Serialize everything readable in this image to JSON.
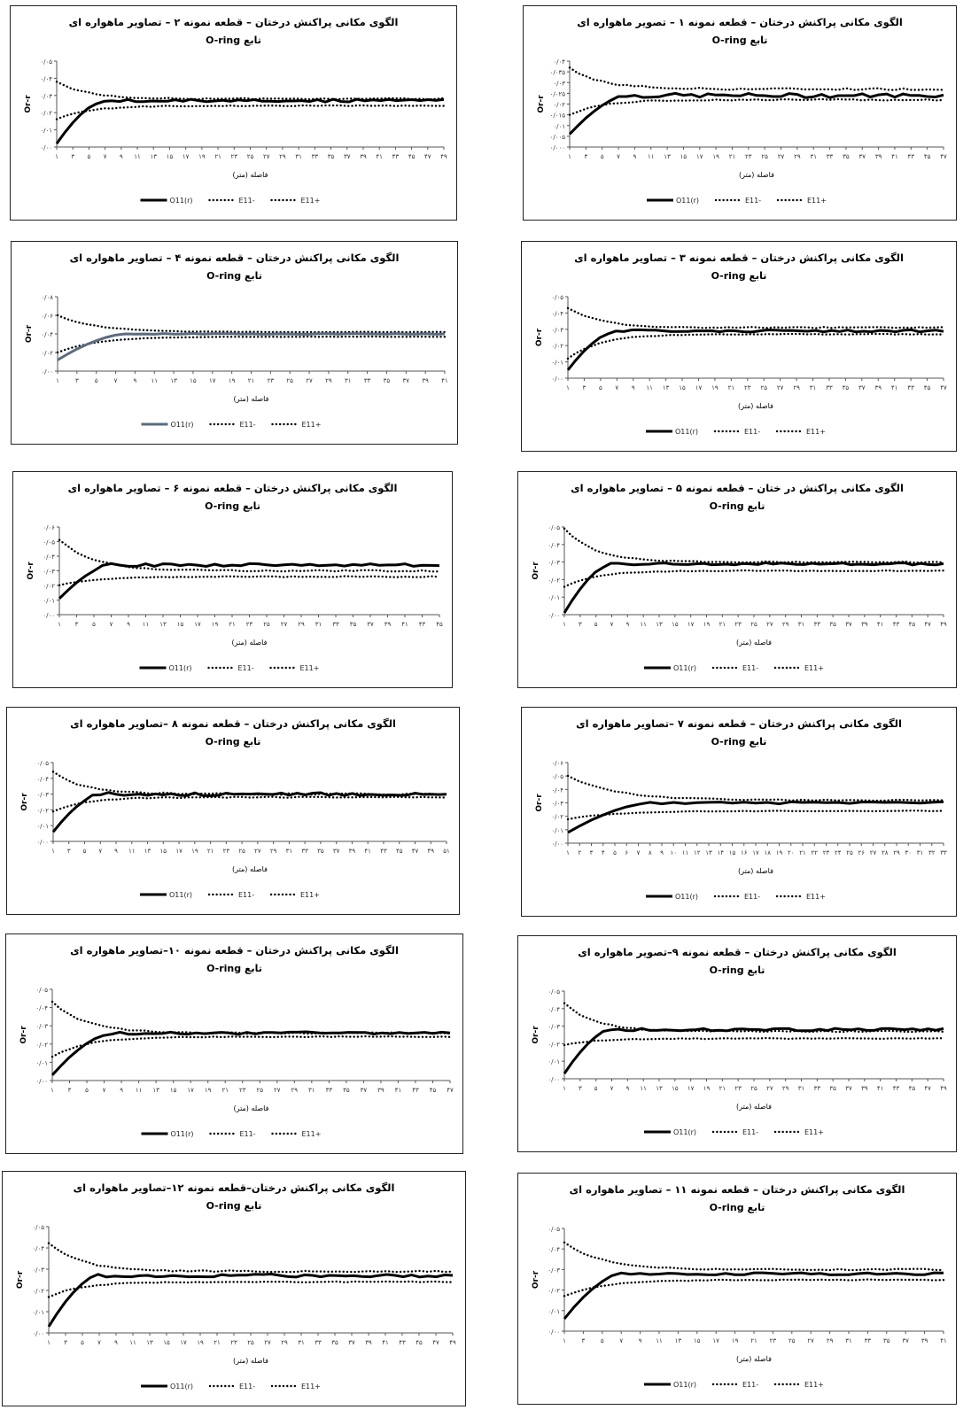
{
  "shared": {
    "function_line": "تابع O-ring",
    "ylabel": "Or-r",
    "xlabel": "فاصله (متر)",
    "legend": [
      "O11(r)",
      "E11-",
      "E11+"
    ]
  },
  "chart_data": [
    {
      "type": "line",
      "title": "الگوی مکانی پراکنش درختان – قطعه نمونه ۱ – تصویر ماهواره ای",
      "ylim": [
        0,
        0.04
      ],
      "yticks": [
        "۰/۰۴",
        "۰/۰۳۵",
        "۰/۰۳",
        "۰/۰۲۵",
        "۰/۰۲",
        "۰/۰۱۵",
        "۰/۰۱",
        "۰/۰۰۵",
        "۰/۰۰۰"
      ],
      "xticks": [
        "۱",
        "۳",
        "۵",
        "۷",
        "۹",
        "۱۱",
        "۱۳",
        "۱۵",
        "۱۷",
        "۱۹",
        "۲۱",
        "۲۳",
        "۲۵",
        "۲۷",
        "۲۹",
        "۳۱",
        "۳۳",
        "۳۵",
        "۳۷",
        "۳۹",
        "۴۱",
        "۴۳",
        "۴۵",
        "۴۷"
      ],
      "n": 47,
      "shape": {
        "o_start": 0.006,
        "rise": 7,
        "level": 0.024,
        "hi_start": 0.037,
        "hi_end": 0.027,
        "lo_start": 0.015,
        "lo_end": 0.022,
        "noise": 0.001
      }
    },
    {
      "type": "line",
      "title": "الگوی مکانی پراکنش درختان – قطعه نمونه ۲ – تصاویر ماهواره ای",
      "ylim": [
        0,
        0.05
      ],
      "yticks": [
        "۰/۰۵",
        "۰/۰۴",
        "۰/۰۳",
        "۰/۰۲",
        "۰/۰۱",
        "۰/۰۰"
      ],
      "xticks": [
        "۱",
        "۳",
        "۵",
        "۷",
        "۹",
        "۱۱",
        "۱۳",
        "۱۵",
        "۱۷",
        "۱۹",
        "۲۱",
        "۲۳",
        "۲۵",
        "۲۷",
        "۲۹",
        "۳۱",
        "۳۳",
        "۳۵",
        "۳۷",
        "۳۹",
        "۴۱",
        "۴۳",
        "۴۵",
        "۴۷",
        "۴۹"
      ],
      "n": 50,
      "shape": {
        "o_start": 0.002,
        "rise": 6,
        "level": 0.027,
        "hi_start": 0.038,
        "hi_end": 0.028,
        "lo_start": 0.016,
        "lo_end": 0.024,
        "noise": 0.0008
      }
    },
    {
      "type": "line",
      "title": "الگوی مکانی پراکنش درختان – قطعه نمونه ۳ – تصاویر ماهواره ای",
      "ylim": [
        0,
        0.05
      ],
      "yticks": [
        "۰/۰۵",
        "۰/۰۴",
        "۰/۰۳",
        "۰/۰۲",
        "۰/۰۱",
        "۰/۰۰"
      ],
      "xticks": [
        "۱",
        "۳",
        "۵",
        "۷",
        "۹",
        "۱۱",
        "۱۳",
        "۱۵",
        "۱۷",
        "۱۹",
        "۲۱",
        "۲۳",
        "۲۵",
        "۲۷",
        "۲۹",
        "۳۱",
        "۳۳",
        "۳۵",
        "۳۷",
        "۳۹",
        "۴۱",
        "۴۳",
        "۴۵",
        "۴۷"
      ],
      "n": 48,
      "shape": {
        "o_start": 0.005,
        "rise": 6,
        "level": 0.029,
        "hi_start": 0.043,
        "hi_end": 0.031,
        "lo_start": 0.012,
        "lo_end": 0.027,
        "noise": 0.0007
      }
    },
    {
      "type": "line",
      "title": "الگوی مکانی پراکنش درختان – قطعه نمونه ۴ – تصاویر ماهواره ای",
      "ylim": [
        0,
        0.08
      ],
      "yticks": [
        "۰/۰۸",
        "۰/۰۶",
        "۰/۰۴",
        "۰/۰۲",
        "۰/۰۰"
      ],
      "xticks": [
        "۱",
        "۳",
        "۵",
        "۷",
        "۹",
        "۱۱",
        "۱۳",
        "۱۵",
        "۱۷",
        "۱۹",
        "۲۱",
        "۲۳",
        "۲۵",
        "۲۷",
        "۲۹",
        "۳۱",
        "۳۳",
        "۳۵",
        "۳۷",
        "۳۹",
        "۴۱"
      ],
      "n": 41,
      "color": "#5b6b80",
      "shape": {
        "o_start": 0.012,
        "rise": 7,
        "level": 0.04,
        "hi_start": 0.06,
        "hi_end": 0.042,
        "lo_start": 0.02,
        "lo_end": 0.037,
        "noise": 0.0005
      }
    },
    {
      "type": "line",
      "title": "الگوی مکانی پراکنش در ختان – قطعه نمونه ۵ – تصاویر ماهواره ای",
      "ylim": [
        0,
        0.05
      ],
      "yticks": [
        "۰/۰۵",
        "۰/۰۴",
        "۰/۰۳",
        "۰/۰۲",
        "۰/۰۱",
        "۰/۰۰"
      ],
      "xticks": [
        "۱",
        "۳",
        "۵",
        "۷",
        "۹",
        "۱۱",
        "۱۳",
        "۱۵",
        "۱۷",
        "۱۹",
        "۲۱",
        "۲۳",
        "۲۵",
        "۲۷",
        "۲۹",
        "۳۱",
        "۳۳",
        "۳۵",
        "۳۷",
        "۳۹",
        "۴۱",
        "۴۳",
        "۴۵",
        "۴۷",
        "۴۹"
      ],
      "n": 50,
      "shape": {
        "o_start": 0.001,
        "rise": 6,
        "level": 0.029,
        "hi_start": 0.049,
        "hi_end": 0.03,
        "lo_start": 0.016,
        "lo_end": 0.025,
        "noise": 0.0006
      }
    },
    {
      "type": "line",
      "title": "الگوی مکانی پراکنش درختان – قطعه نمونه ۶ – تصاویر ماهواره ای",
      "ylim": [
        0,
        0.06
      ],
      "yticks": [
        "۰/۰۶",
        "۰/۰۵",
        "۰/۰۴",
        "۰/۰۳",
        "۰/۰۲",
        "۰/۰۱",
        "۰/۰۰"
      ],
      "xticks": [
        "۱",
        "۳",
        "۵",
        "۷",
        "۹",
        "۱۱",
        "۱۳",
        "۱۵",
        "۱۷",
        "۱۹",
        "۲۱",
        "۲۳",
        "۲۵",
        "۲۷",
        "۲۹",
        "۳۱",
        "۳۳",
        "۳۵",
        "۳۷",
        "۳۹",
        "۴۱",
        "۴۳",
        "۴۵"
      ],
      "n": 45,
      "shape": {
        "o_start": 0.011,
        "rise": 6,
        "level": 0.034,
        "hi_start": 0.051,
        "hi_end": 0.03,
        "lo_start": 0.02,
        "lo_end": 0.026,
        "noise": 0.001
      }
    },
    {
      "type": "line",
      "title": "الگوی مکانی پراکنش درختان – قطعه نمونه ۷ –تصاویر ماهواره ای",
      "ylim": [
        0,
        0.06
      ],
      "yticks": [
        "۰/۰۶",
        "۰/۰۵",
        "۰/۰۴",
        "۰/۰۳",
        "۰/۰۲",
        "۰/۰۱",
        "۰/۰۰"
      ],
      "xticks": [
        "۱",
        "۲",
        "۳",
        "۴",
        "۵",
        "۶",
        "۷",
        "۸",
        "۹",
        "۱۰",
        "۱۱",
        "۱۲",
        "۱۳",
        "۱۴",
        "۱۵",
        "۱۶",
        "۱۷",
        "۱۸",
        "۱۹",
        "۲۰",
        "۲۱",
        "۲۲",
        "۲۳",
        "۲۴",
        "۲۵",
        "۲۶",
        "۲۷",
        "۲۸",
        "۲۹",
        "۳۰",
        "۳۱",
        "۳۲",
        "۳۳"
      ],
      "n": 33,
      "shape": {
        "o_start": 0.008,
        "rise": 7,
        "level": 0.03,
        "hi_start": 0.05,
        "hi_end": 0.032,
        "lo_start": 0.018,
        "lo_end": 0.024,
        "noise": 0.0008
      }
    },
    {
      "type": "line",
      "title": "الگوی مکانی پراکنش درختان – قطعه نمونه ۸ –تصاویر ماهواره ای",
      "ylim": [
        0,
        0.05
      ],
      "yticks": [
        "۰/۰۵",
        "۰/۰۴",
        "۰/۰۳",
        "۰/۰۲",
        "۰/۰۱",
        "۰/۰۰"
      ],
      "xticks": [
        "۱",
        "۳",
        "۵",
        "۷",
        "۹",
        "۱۱",
        "۱۳",
        "۱۵",
        "۱۷",
        "۱۹",
        "۲۱",
        "۲۳",
        "۲۵",
        "۲۷",
        "۲۹",
        "۳۱",
        "۳۳",
        "۳۵",
        "۳۷",
        "۳۹",
        "۴۱",
        "۴۳",
        "۴۵",
        "۴۷",
        "۴۹",
        "۵۱"
      ],
      "n": 51,
      "shape": {
        "o_start": 0.006,
        "rise": 6,
        "level": 0.03,
        "hi_start": 0.044,
        "hi_end": 0.03,
        "lo_start": 0.019,
        "lo_end": 0.028,
        "noise": 0.001
      }
    },
    {
      "type": "line",
      "title": "الگوی مکانی پراکنش درختان – قطعه نمونه ۹–تصویر ماهواره ای",
      "ylim": [
        0,
        0.05
      ],
      "yticks": [
        "۰/۰۵",
        "۰/۰۴",
        "۰/۰۳",
        "۰/۰۲",
        "۰/۰۱",
        "۰/۰۰"
      ],
      "xticks": [
        "۱",
        "۳",
        "۵",
        "۷",
        "۹",
        "۱۱",
        "۱۳",
        "۱۵",
        "۱۷",
        "۱۹",
        "۲۱",
        "۲۳",
        "۲۵",
        "۲۷",
        "۲۹",
        "۳۱",
        "۳۳",
        "۳۵",
        "۳۷",
        "۳۹",
        "۴۱",
        "۴۳",
        "۴۵",
        "۴۷",
        "۴۹"
      ],
      "n": 50,
      "shape": {
        "o_start": 0.003,
        "rise": 6,
        "level": 0.028,
        "hi_start": 0.043,
        "hi_end": 0.027,
        "lo_start": 0.019,
        "lo_end": 0.023,
        "noise": 0.0007
      }
    },
    {
      "type": "line",
      "title": "الگوی مکانی پراکنش درختان – قطعه نمونه ۱۰–تصاویر ماهواره ای",
      "ylim": [
        0,
        0.05
      ],
      "yticks": [
        "۰/۰۵",
        "۰/۰۴",
        "۰/۰۳",
        "۰/۰۲",
        "۰/۰۱",
        "۰/۰۰"
      ],
      "xticks": [
        "۱",
        "۳",
        "۵",
        "۷",
        "۹",
        "۱۱",
        "۱۳",
        "۱۵",
        "۱۷",
        "۱۹",
        "۲۱",
        "۲۳",
        "۲۵",
        "۲۷",
        "۲۹",
        "۳۱",
        "۳۳",
        "۳۵",
        "۳۷",
        "۳۹",
        "۴۱",
        "۴۳",
        "۴۵",
        "۴۷"
      ],
      "n": 48,
      "shape": {
        "o_start": 0.003,
        "rise": 7,
        "level": 0.026,
        "hi_start": 0.043,
        "hi_end": 0.026,
        "lo_start": 0.013,
        "lo_end": 0.024,
        "noise": 0.0007
      }
    },
    {
      "type": "line",
      "title": "الگوی مکانی پراکنش درختان – قطعه نمونه ۱۱ – تصاویر ماهواره ای",
      "ylim": [
        0,
        0.05
      ],
      "yticks": [
        "۰/۰۵",
        "۰/۰۴",
        "۰/۰۳",
        "۰/۰۲",
        "۰/۰۱",
        "۰/۰۰"
      ],
      "xticks": [
        "۱",
        "۳",
        "۵",
        "۷",
        "۹",
        "۱۱",
        "۱۳",
        "۱۵",
        "۱۷",
        "۱۹",
        "۲۱",
        "۲۳",
        "۲۵",
        "۲۷",
        "۲۹",
        "۳۱",
        "۳۳",
        "۳۵",
        "۳۷",
        "۳۹",
        "۴۱"
      ],
      "n": 41,
      "shape": {
        "o_start": 0.006,
        "rise": 6,
        "level": 0.028,
        "hi_start": 0.043,
        "hi_end": 0.03,
        "lo_start": 0.017,
        "lo_end": 0.025,
        "noise": 0.0006
      }
    },
    {
      "type": "line",
      "title": "الگوی مکانی پراکنش درختان–قطعه نمونه ۱۲–تصاویر ماهواره ای",
      "ylim": [
        0,
        0.05
      ],
      "yticks": [
        "۰/۰۵",
        "۰/۰۴",
        "۰/۰۳",
        "۰/۰۲",
        "۰/۰۱",
        "۰/۰۰"
      ],
      "xticks": [
        "۱",
        "۳",
        "۵",
        "۷",
        "۹",
        "۱۱",
        "۱۳",
        "۱۵",
        "۱۷",
        "۱۹",
        "۲۱",
        "۲۳",
        "۲۵",
        "۲۷",
        "۲۹",
        "۳۱",
        "۳۳",
        "۳۵",
        "۳۷",
        "۳۹",
        "۴۱",
        "۴۳",
        "۴۵",
        "۴۷",
        "۴۹"
      ],
      "n": 50,
      "shape": {
        "o_start": 0.003,
        "rise": 6,
        "level": 0.027,
        "hi_start": 0.042,
        "hi_end": 0.029,
        "lo_start": 0.017,
        "lo_end": 0.024,
        "noise": 0.0007
      }
    }
  ]
}
